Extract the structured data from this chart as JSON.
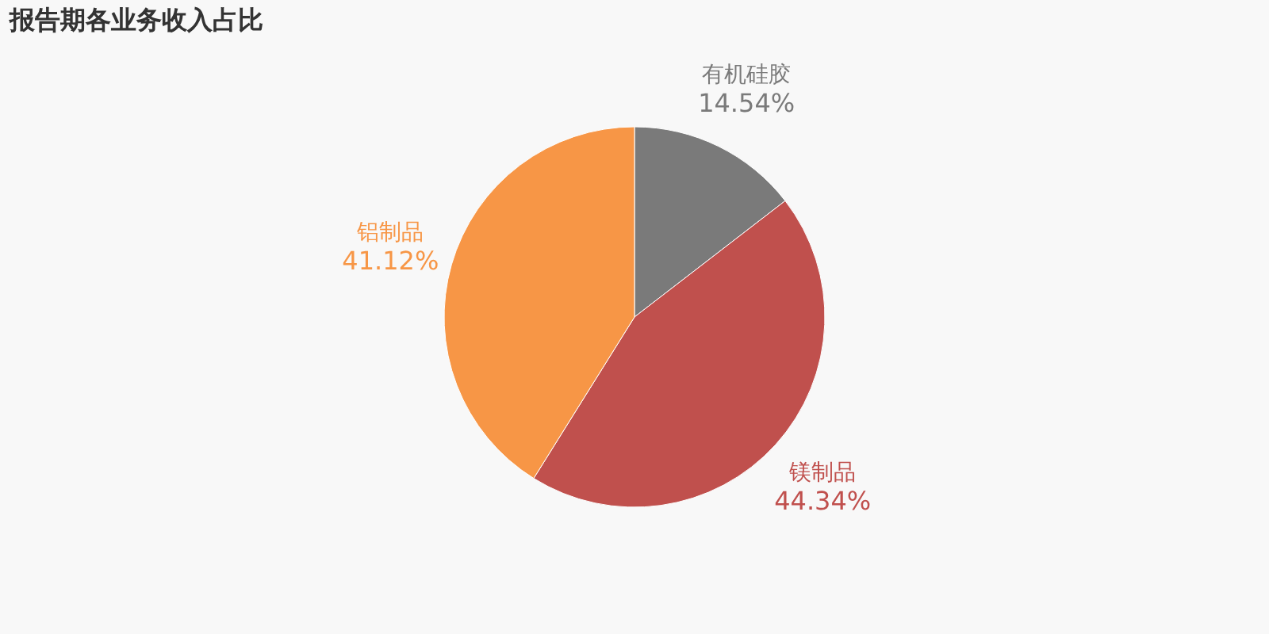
{
  "chart_data": {
    "type": "pie",
    "title": "报告期各业务收入占比",
    "categories": [
      "有机硅胶",
      "镁制品",
      "铝制品"
    ],
    "values": [
      14.54,
      44.34,
      41.12
    ],
    "value_labels": [
      "14.54%",
      "44.34%",
      "41.12%"
    ],
    "colors": [
      "#7a7a7a",
      "#c0504d",
      "#f79646"
    ]
  }
}
